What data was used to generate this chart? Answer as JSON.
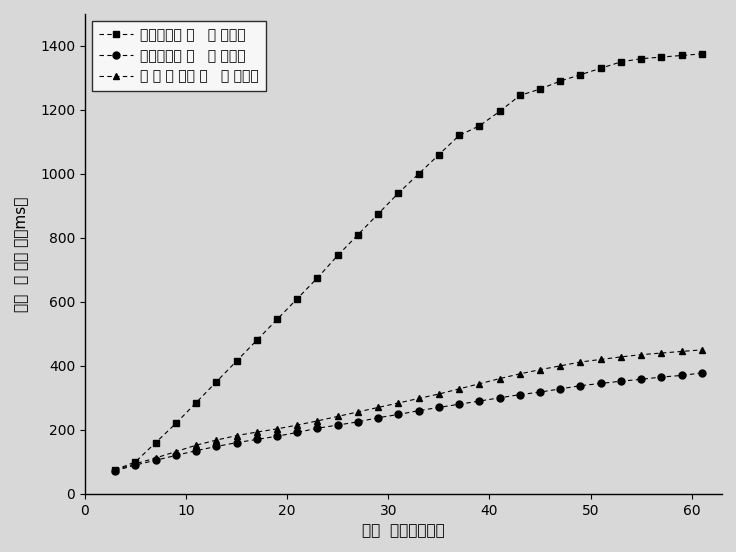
{
  "x": [
    3,
    5,
    7,
    9,
    11,
    13,
    15,
    17,
    19,
    21,
    23,
    25,
    27,
    29,
    31,
    33,
    35,
    37,
    39,
    41,
    43,
    45,
    47,
    49,
    51,
    53,
    55,
    57,
    59,
    61
  ],
  "series1_name": "传统串行方 法   建 立光路",
  "series2_name": "典型并行方 法   建 立光路",
  "series3_name": "本 发 明 的方 法   建 立光路",
  "series1": [
    75,
    100,
    160,
    220,
    285,
    350,
    415,
    480,
    545,
    610,
    675,
    745,
    810,
    875,
    940,
    1000,
    1060,
    1120,
    1150,
    1195,
    1245,
    1265,
    1290,
    1310,
    1330,
    1350,
    1360,
    1365,
    1370,
    1375
  ],
  "series2": [
    72,
    90,
    105,
    120,
    135,
    148,
    160,
    170,
    180,
    192,
    205,
    215,
    225,
    238,
    248,
    260,
    270,
    280,
    290,
    300,
    310,
    318,
    328,
    338,
    345,
    352,
    358,
    365,
    370,
    378
  ],
  "series3": [
    74,
    94,
    112,
    132,
    152,
    168,
    182,
    193,
    203,
    215,
    228,
    242,
    256,
    270,
    284,
    298,
    312,
    328,
    344,
    360,
    375,
    388,
    400,
    412,
    420,
    428,
    435,
    440,
    445,
    450
  ],
  "xlabel": "光路  需要的节点数",
  "ylabel": "光路  建 立时 间（ms）",
  "xlim": [
    0,
    63
  ],
  "ylim": [
    0,
    1500
  ],
  "xticks": [
    0,
    10,
    20,
    30,
    40,
    50,
    60
  ],
  "yticks": [
    0,
    200,
    400,
    600,
    800,
    1000,
    1200,
    1400
  ],
  "bg_color": "#d8d8d8",
  "plot_bg_color": "#d8d8d8",
  "legend_loc": "upper left",
  "fontsize_label": 11,
  "fontsize_tick": 10,
  "fontsize_legend": 10
}
